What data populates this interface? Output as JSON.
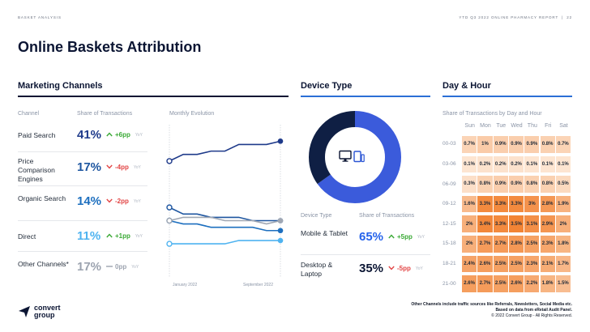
{
  "header": {
    "left_tag": "BASKET ANALYSIS",
    "right_tag": "YTD Q3 2022 ONLINE PHARMACY REPORT",
    "separator": "|",
    "page_number": "22"
  },
  "page_title": "Online Baskets Attribution",
  "marketing": {
    "title": "Marketing Channels",
    "col_channel": "Channel",
    "col_share": "Share of Transactions",
    "col_monthly": "Monthly Evolution",
    "yoy_label": "YoY",
    "rows": [
      {
        "label": "Paid Search",
        "share": "41%",
        "delta": "+6pp",
        "dir": "up",
        "color": "#1e3a8a"
      },
      {
        "label": "Price Comparison Engines",
        "share": "17%",
        "delta": "-4pp",
        "dir": "down",
        "color": "#1e56a0"
      },
      {
        "label": "Organic Search",
        "share": "14%",
        "delta": "-2pp",
        "dir": "down",
        "color": "#1d6fbf"
      },
      {
        "label": "Direct",
        "share": "11%",
        "delta": "+1pp",
        "dir": "up",
        "color": "#4fb3f0"
      },
      {
        "label": "Other Channels*",
        "share": "17%",
        "delta": "0pp",
        "dir": "flat",
        "color": "#9ca3af"
      }
    ],
    "chart_axis": {
      "start": "January 2022",
      "end": "September 2022"
    }
  },
  "chart_data": {
    "type": "line",
    "x": [
      "Jan 2022",
      "Feb 2022",
      "Mar 2022",
      "Apr 2022",
      "May 2022",
      "Jun 2022",
      "Jul 2022",
      "Aug 2022",
      "Sep 2022"
    ],
    "series": [
      {
        "name": "Paid Search",
        "values": [
          35,
          37,
          37,
          38,
          38,
          40,
          40,
          40,
          41
        ],
        "color": "#1e3a8a"
      },
      {
        "name": "Price Comparison Engines",
        "values": [
          21,
          19,
          19,
          18,
          18,
          18,
          17,
          17,
          17
        ],
        "color": "#1e56a0"
      },
      {
        "name": "Organic Search",
        "values": [
          17,
          16,
          16,
          15,
          15,
          15,
          15,
          14,
          14
        ],
        "color": "#1d6fbf"
      },
      {
        "name": "Direct",
        "values": [
          10,
          10,
          10,
          10,
          10,
          11,
          11,
          11,
          11
        ],
        "color": "#4fb3f0"
      },
      {
        "name": "Other Channels*",
        "values": [
          17,
          18,
          18,
          18,
          17,
          17,
          17,
          16,
          17
        ],
        "color": "#a0a7b3"
      }
    ],
    "ylim": [
      0,
      45
    ]
  },
  "device": {
    "title": "Device Type",
    "col_device": "Device Type",
    "col_share": "Share of Transactions",
    "yoy_label": "YoY",
    "rows": [
      {
        "label": "Mobile & Tablet",
        "share": "65%",
        "delta": "+5pp",
        "dir": "up",
        "color": "#2563eb"
      },
      {
        "label": "Desktop & Laptop",
        "share": "35%",
        "delta": "-5pp",
        "dir": "down",
        "color": "#0b1533"
      }
    ],
    "donut": [
      {
        "value": 65,
        "color": "#3b5bdb"
      },
      {
        "value": 35,
        "color": "#0f1f44"
      }
    ]
  },
  "dayhour": {
    "title": "Day & Hour",
    "subtitle": "Share of Transactions by Day and Hour",
    "days": [
      "Sun",
      "Mon",
      "Tue",
      "Wed",
      "Thu",
      "Fri",
      "Sat"
    ],
    "hours": [
      "00-03",
      "03-06",
      "06-09",
      "09-12",
      "12-15",
      "15-18",
      "18-21",
      "21-00"
    ],
    "values": [
      [
        "0.7%",
        "1%",
        "0.9%",
        "0.9%",
        "0.9%",
        "0.8%",
        "0.7%"
      ],
      [
        "0.1%",
        "0.2%",
        "0.2%",
        "0.2%",
        "0.1%",
        "0.1%",
        "0.1%"
      ],
      [
        "0.3%",
        "0.8%",
        "0.9%",
        "0.9%",
        "0.8%",
        "0.8%",
        "0.5%"
      ],
      [
        "1.6%",
        "3.3%",
        "3.3%",
        "3.3%",
        "3%",
        "2.8%",
        "1.9%"
      ],
      [
        "2%",
        "3.4%",
        "3.3%",
        "3.5%",
        "3.1%",
        "2.9%",
        "2%"
      ],
      [
        "2%",
        "2.7%",
        "2.7%",
        "2.8%",
        "2.5%",
        "2.3%",
        "1.8%"
      ],
      [
        "2.4%",
        "2.6%",
        "2.5%",
        "2.5%",
        "2.3%",
        "2.1%",
        "1.7%"
      ],
      [
        "2.6%",
        "2.7%",
        "2.5%",
        "2.6%",
        "2.2%",
        "1.8%",
        "1.5%"
      ]
    ]
  },
  "footer": {
    "brand_line1": "convert",
    "brand_line2": "group",
    "note1": "Other Channels include traffic sources like Referrals, Newsletters, Social Media etc.",
    "note2": "Based on data from eRetail Audit Panel.",
    "note3": "© 2022 Convert Group - All Rights Reserved."
  },
  "colors": {
    "navy": "#0b1533",
    "blue": "#2563eb",
    "accent_line": "#2b6fd6",
    "up": "#3aa935",
    "down": "#e24545",
    "heat_low": "#fde8d6",
    "heat_high": "#f28a3a"
  }
}
